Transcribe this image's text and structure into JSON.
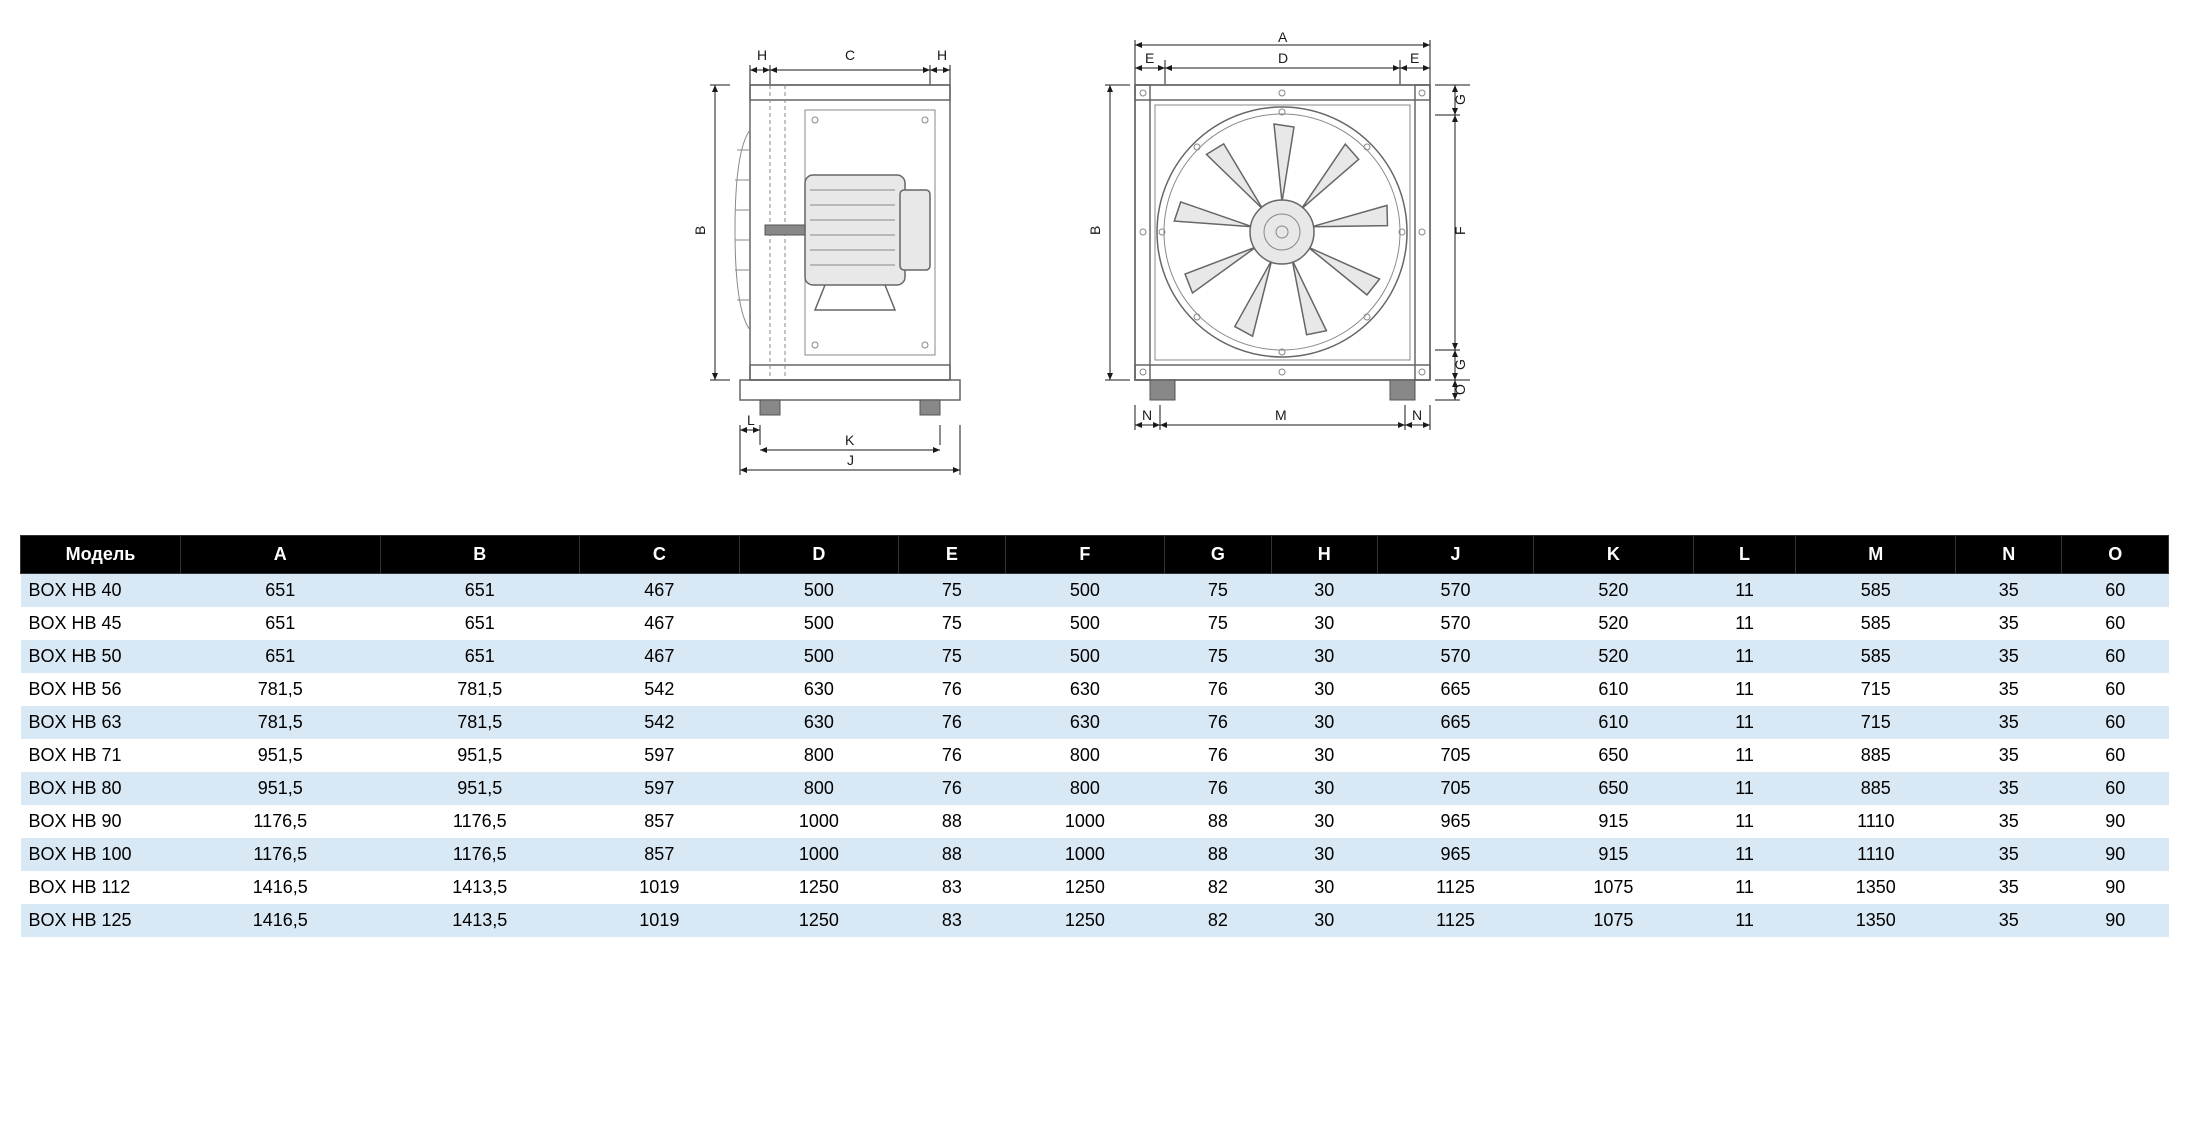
{
  "diagrams": {
    "side_view": {
      "labels": {
        "H_left": "H",
        "H_right": "H",
        "C": "C",
        "B": "B",
        "L": "L",
        "K": "K",
        "J": "J"
      }
    },
    "front_view": {
      "labels": {
        "A": "A",
        "E_left": "E",
        "E_right": "E",
        "D": "D",
        "B": "B",
        "G_top": "G",
        "G_bottom": "G",
        "F": "F",
        "O": "O",
        "N_left": "N",
        "N_right": "N",
        "M": "M"
      }
    }
  },
  "table": {
    "type": "table",
    "header_bg_color": "#000000",
    "header_text_color": "#ffffff",
    "row_odd_bg": "#d9e8f5",
    "row_even_bg": "#ffffff",
    "font_size": 18,
    "columns": [
      "Модель",
      "A",
      "B",
      "C",
      "D",
      "E",
      "F",
      "G",
      "H",
      "J",
      "K",
      "L",
      "M",
      "N",
      "O"
    ],
    "rows": [
      [
        "BOX HB 40",
        "651",
        "651",
        "467",
        "500",
        "75",
        "500",
        "75",
        "30",
        "570",
        "520",
        "11",
        "585",
        "35",
        "60"
      ],
      [
        "BOX HB 45",
        "651",
        "651",
        "467",
        "500",
        "75",
        "500",
        "75",
        "30",
        "570",
        "520",
        "11",
        "585",
        "35",
        "60"
      ],
      [
        "BOX HB 50",
        "651",
        "651",
        "467",
        "500",
        "75",
        "500",
        "75",
        "30",
        "570",
        "520",
        "11",
        "585",
        "35",
        "60"
      ],
      [
        "BOX HB 56",
        "781,5",
        "781,5",
        "542",
        "630",
        "76",
        "630",
        "76",
        "30",
        "665",
        "610",
        "11",
        "715",
        "35",
        "60"
      ],
      [
        "BOX HB 63",
        "781,5",
        "781,5",
        "542",
        "630",
        "76",
        "630",
        "76",
        "30",
        "665",
        "610",
        "11",
        "715",
        "35",
        "60"
      ],
      [
        "BOX HB 71",
        "951,5",
        "951,5",
        "597",
        "800",
        "76",
        "800",
        "76",
        "30",
        "705",
        "650",
        "11",
        "885",
        "35",
        "60"
      ],
      [
        "BOX HB 80",
        "951,5",
        "951,5",
        "597",
        "800",
        "76",
        "800",
        "76",
        "30",
        "705",
        "650",
        "11",
        "885",
        "35",
        "60"
      ],
      [
        "BOX HB 90",
        "1176,5",
        "1176,5",
        "857",
        "1000",
        "88",
        "1000",
        "88",
        "30",
        "965",
        "915",
        "11",
        "1110",
        "35",
        "90"
      ],
      [
        "BOX HB 100",
        "1176,5",
        "1176,5",
        "857",
        "1000",
        "88",
        "1000",
        "88",
        "30",
        "965",
        "915",
        "11",
        "1110",
        "35",
        "90"
      ],
      [
        "BOX HB 112",
        "1416,5",
        "1413,5",
        "1019",
        "1250",
        "83",
        "1250",
        "82",
        "30",
        "1125",
        "1075",
        "11",
        "1350",
        "35",
        "90"
      ],
      [
        "BOX HB 125",
        "1416,5",
        "1413,5",
        "1019",
        "1250",
        "83",
        "1250",
        "82",
        "30",
        "1125",
        "1075",
        "11",
        "1350",
        "35",
        "90"
      ]
    ]
  }
}
